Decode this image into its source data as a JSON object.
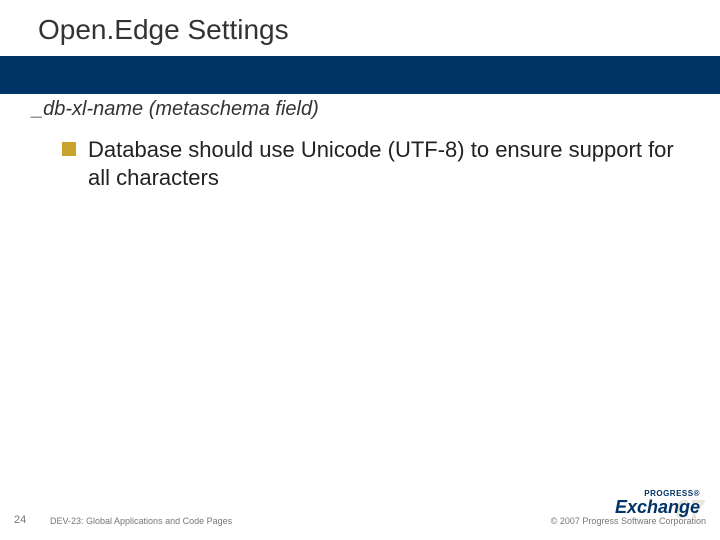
{
  "title": "Open.Edge Settings",
  "subtitle": "_db-xl-name (metaschema field)",
  "bullets": [
    "Database should use Unicode (UTF-8) to ensure support for all characters"
  ],
  "footer": {
    "page": "24",
    "left": "DEV-23: Global Applications and Code Pages",
    "right": "© 2007 Progress Software Corporation"
  },
  "logo": {
    "top": "PROGRESS®",
    "main": "Exchange",
    "year": "07"
  },
  "colors": {
    "band": "#003366",
    "bullet": "#c9a22e",
    "title_text": "#333333",
    "body_text": "#222222",
    "footer_text": "#777777",
    "background": "#ffffff",
    "logo_year": "#d9d4c5"
  },
  "typography": {
    "title_fontsize": 28,
    "subtitle_fontsize": 20,
    "body_fontsize": 22,
    "footer_fontsize": 9,
    "pagenum_fontsize": 11
  }
}
